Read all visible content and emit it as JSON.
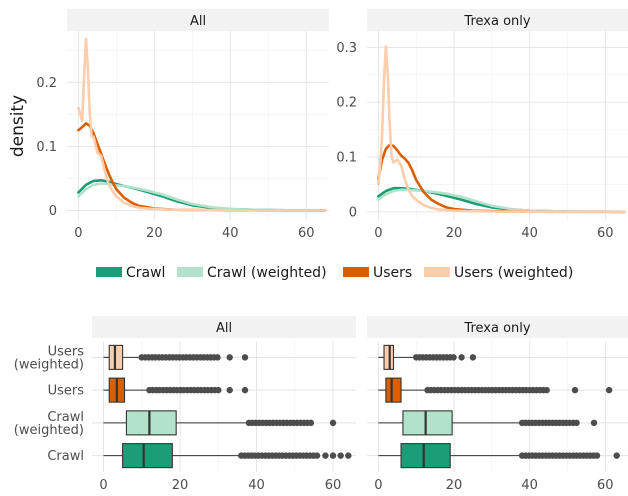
{
  "chart_data": [
    {
      "type": "line",
      "subtype": "density",
      "facets": [
        "All",
        "Trexa only"
      ],
      "xlim": [
        -3,
        66
      ],
      "ylim_by_facet": [
        [
          -0.015,
          0.28
        ],
        [
          -0.015,
          0.33
        ]
      ],
      "x_ticks": [
        0,
        20,
        40,
        60
      ],
      "x_tick_labels": [
        "0",
        "20",
        "40",
        "60"
      ],
      "y_ticks_by_facet": [
        [
          0,
          0.1,
          0.2
        ],
        [
          0,
          0.1,
          0.2,
          0.3
        ]
      ],
      "y_tick_labels_by_facet": [
        [
          "0",
          "0.1",
          "0.2"
        ],
        [
          "0",
          "0.1",
          "0.2",
          "0.3"
        ]
      ],
      "ylabel": "density",
      "grid": true,
      "legend_position": "bottom",
      "legend": [
        "Crawl",
        "Crawl (weighted)",
        "Users",
        "Users (weighted)"
      ],
      "series": [
        {
          "name": "Crawl",
          "color": "#1b9e77",
          "x": [
            0,
            2,
            4,
            6,
            8,
            10,
            12,
            15,
            18,
            22,
            26,
            30,
            35,
            40,
            45,
            50,
            55,
            60,
            65
          ],
          "facet_values": [
            [
              0.028,
              0.04,
              0.046,
              0.047,
              0.045,
              0.041,
              0.038,
              0.034,
              0.029,
              0.022,
              0.014,
              0.008,
              0.004,
              0.002,
              0.001,
              0.0005,
              0.0002,
              0.0001,
              0
            ],
            [
              0.028,
              0.038,
              0.043,
              0.043,
              0.042,
              0.04,
              0.038,
              0.034,
              0.029,
              0.022,
              0.014,
              0.008,
              0.004,
              0.002,
              0.001,
              0.0005,
              0.0002,
              0.0001,
              0
            ]
          ]
        },
        {
          "name": "Crawl (weighted)",
          "color": "#b2e2cc",
          "x": [
            0,
            2,
            4,
            6,
            8,
            10,
            12,
            15,
            18,
            22,
            26,
            30,
            35,
            40,
            45,
            50,
            55,
            60,
            65
          ],
          "facet_values": [
            [
              0.022,
              0.033,
              0.04,
              0.042,
              0.041,
              0.039,
              0.038,
              0.035,
              0.031,
              0.025,
              0.017,
              0.01,
              0.005,
              0.002,
              0.001,
              0.0005,
              0.0002,
              0.0001,
              0
            ],
            [
              0.022,
              0.032,
              0.038,
              0.04,
              0.04,
              0.039,
              0.038,
              0.036,
              0.033,
              0.027,
              0.019,
              0.011,
              0.005,
              0.002,
              0.001,
              0.0005,
              0.0002,
              0.0001,
              0
            ]
          ]
        },
        {
          "name": "Users",
          "color": "#d95f02",
          "x": [
            0,
            1,
            2,
            3,
            4,
            5,
            6,
            7,
            8,
            9,
            10,
            12,
            14,
            16,
            18,
            20,
            25,
            30,
            40,
            50,
            60,
            65
          ],
          "facet_values": [
            [
              0.125,
              0.13,
              0.136,
              0.132,
              0.12,
              0.104,
              0.088,
              0.072,
              0.057,
              0.044,
              0.033,
              0.02,
              0.012,
              0.007,
              0.005,
              0.003,
              0.001,
              0.0005,
              0.0001,
              0,
              0,
              0
            ],
            [
              0.06,
              0.095,
              0.115,
              0.122,
              0.12,
              0.112,
              0.103,
              0.097,
              0.089,
              0.075,
              0.058,
              0.036,
              0.022,
              0.014,
              0.008,
              0.005,
              0.002,
              0.001,
              0.0002,
              0,
              0,
              0
            ]
          ]
        },
        {
          "name": "Users (weighted)",
          "color": "#fdcdac",
          "x": [
            0,
            0.5,
            1,
            1.5,
            2,
            2.5,
            3,
            3.5,
            4,
            5,
            6,
            7,
            8,
            9,
            10,
            12,
            14,
            16,
            20,
            25,
            30,
            40,
            50,
            60,
            65
          ],
          "facet_values": [
            [
              0.16,
              0.15,
              0.14,
              0.21,
              0.268,
              0.22,
              0.15,
              0.115,
              0.115,
              0.09,
              0.085,
              0.06,
              0.04,
              0.03,
              0.022,
              0.012,
              0.007,
              0.004,
              0.002,
              0.001,
              0.0005,
              0.0001,
              0,
              0,
              0
            ],
            [
              0.05,
              0.085,
              0.14,
              0.24,
              0.302,
              0.25,
              0.16,
              0.1,
              0.09,
              0.095,
              0.085,
              0.06,
              0.04,
              0.028,
              0.022,
              0.012,
              0.007,
              0.004,
              0.002,
              0.001,
              0.0005,
              0.0001,
              0,
              0,
              0
            ]
          ]
        }
      ]
    },
    {
      "type": "box",
      "facets": [
        "All",
        "Trexa only"
      ],
      "xlim": [
        -3,
        66
      ],
      "x_ticks": [
        0,
        20,
        40,
        60
      ],
      "x_tick_labels": [
        "0",
        "20",
        "40",
        "60"
      ],
      "categories": [
        "Users\n(weighted)",
        "Users",
        "Crawl\n(weighted)",
        "Crawl"
      ],
      "grid": true,
      "series": [
        {
          "name": "Users (weighted)",
          "color": "#fdcdac",
          "facet_boxes": [
            {
              "whisker_low": 0,
              "q1": 1.5,
              "median": 3,
              "q3": 5,
              "whisker_high": 10,
              "outliers_from": 10,
              "outliers_to": 30,
              "outliers": [
                33,
                37
              ]
            },
            {
              "whisker_low": 0,
              "q1": 1.5,
              "median": 3,
              "q3": 4,
              "whisker_high": 10,
              "outliers_from": 10,
              "outliers_to": 20,
              "outliers": [
                22,
                25
              ]
            }
          ]
        },
        {
          "name": "Users",
          "color": "#d95f02",
          "facet_boxes": [
            {
              "whisker_low": 0,
              "q1": 1.5,
              "median": 3.5,
              "q3": 5.5,
              "whisker_high": 12,
              "outliers_from": 12,
              "outliers_to": 30,
              "outliers": [
                33,
                37
              ]
            },
            {
              "whisker_low": 0,
              "q1": 2,
              "median": 3.5,
              "q3": 6,
              "whisker_high": 13,
              "outliers_from": 13,
              "outliers_to": 45,
              "outliers": [
                52,
                61
              ]
            }
          ]
        },
        {
          "name": "Crawl (weighted)",
          "color": "#b2e2cc",
          "facet_boxes": [
            {
              "whisker_low": 0,
              "q1": 6,
              "median": 12,
              "q3": 19,
              "whisker_high": 38,
              "outliers_from": 38,
              "outliers_to": 55,
              "outliers": [
                60
              ]
            },
            {
              "whisker_low": 0,
              "q1": 6.5,
              "median": 12.5,
              "q3": 19.5,
              "whisker_high": 38,
              "outliers_from": 38,
              "outliers_to": 53,
              "outliers": [
                57
              ]
            }
          ]
        },
        {
          "name": "Crawl",
          "color": "#1b9e77",
          "facet_boxes": [
            {
              "whisker_low": 0,
              "q1": 5,
              "median": 10.5,
              "q3": 18,
              "whisker_high": 36,
              "outliers_from": 36,
              "outliers_to": 56,
              "outliers": [
                58,
                60,
                62,
                64
              ]
            },
            {
              "whisker_low": 0,
              "q1": 6,
              "median": 12,
              "q3": 19,
              "whisker_high": 38,
              "outliers_from": 38,
              "outliers_to": 58,
              "outliers": [
                63
              ]
            }
          ]
        }
      ]
    }
  ]
}
